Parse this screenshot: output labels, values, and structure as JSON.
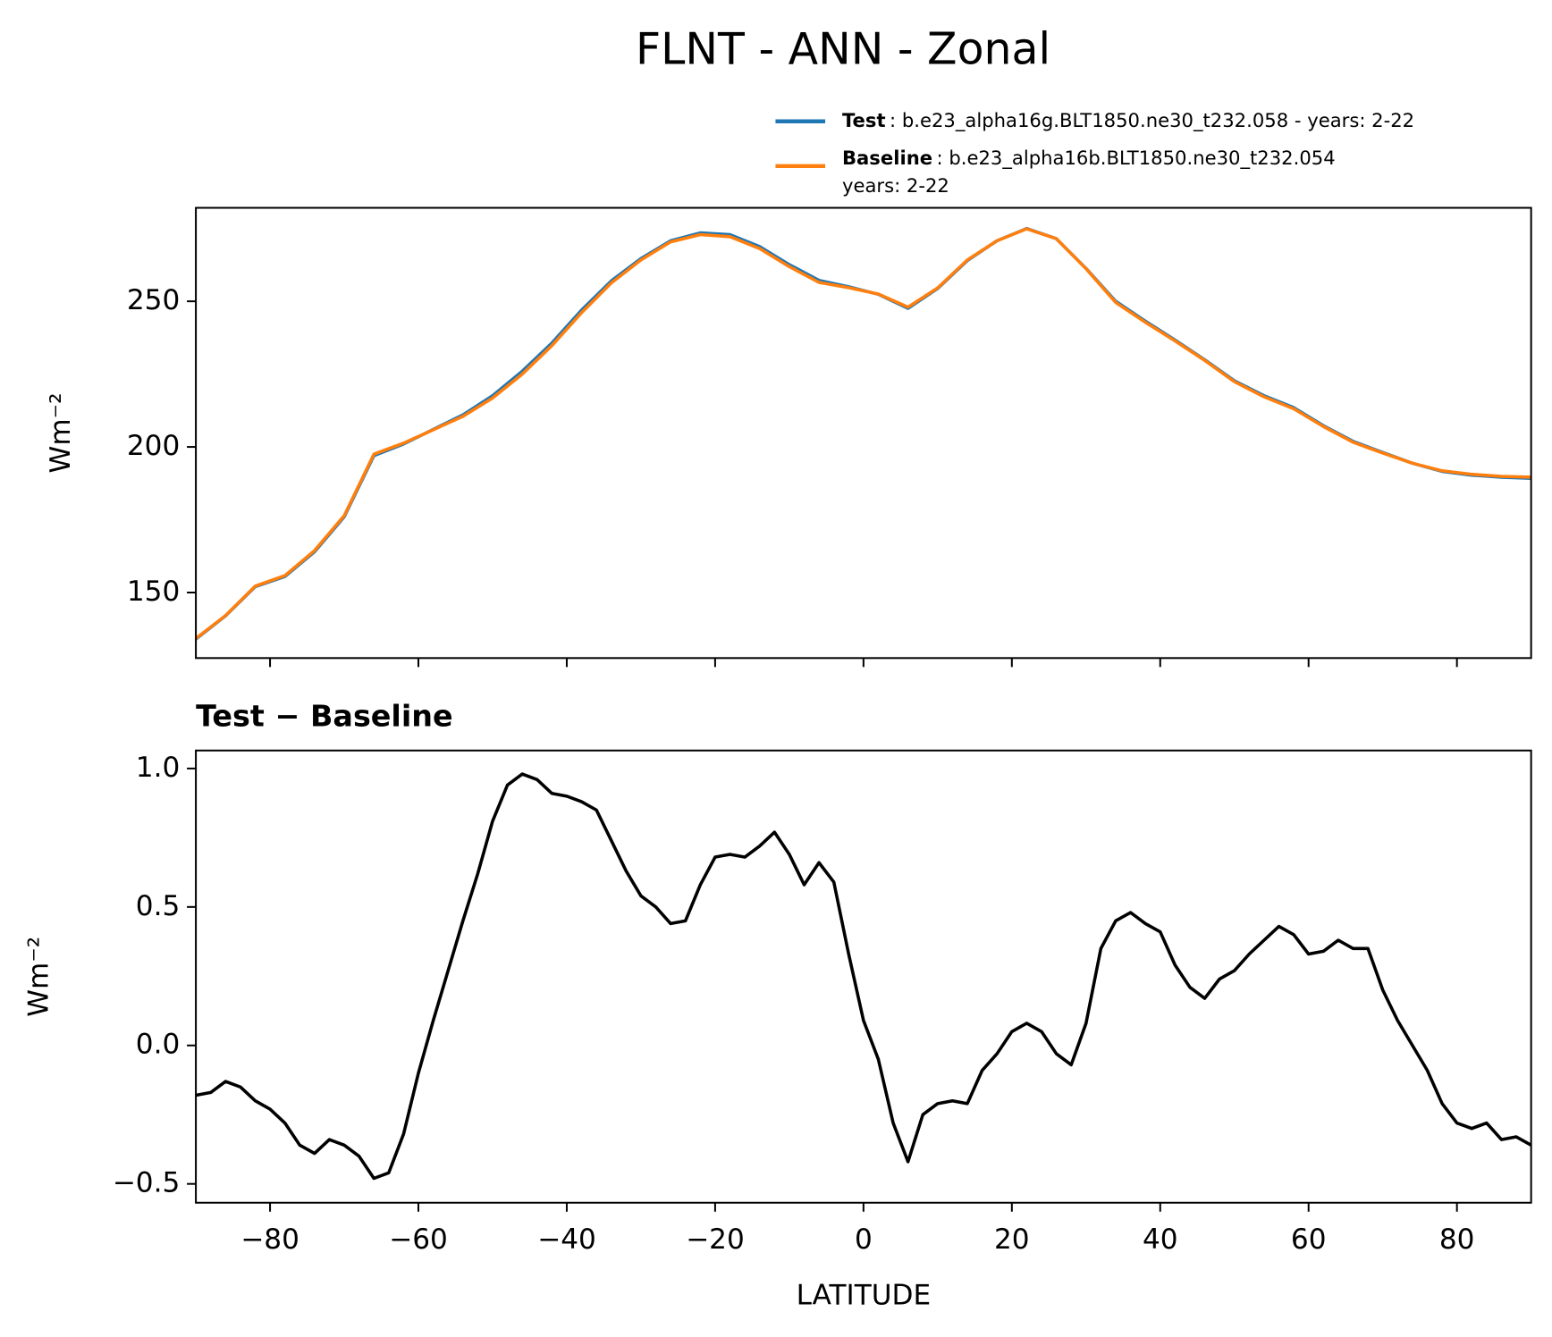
{
  "chart_data": [
    {
      "type": "line",
      "title": "FLNT - ANN - Zonal",
      "ylabel": "Wm⁻²",
      "x": [
        -90,
        -86,
        -82,
        -78,
        -74,
        -70,
        -66,
        -62,
        -58,
        -54,
        -50,
        -46,
        -42,
        -38,
        -34,
        -30,
        -26,
        -22,
        -18,
        -14,
        -10,
        -6,
        -2,
        2,
        6,
        10,
        14,
        18,
        22,
        26,
        30,
        34,
        38,
        42,
        46,
        50,
        54,
        58,
        62,
        66,
        70,
        74,
        78,
        82,
        86,
        90
      ],
      "xlim": [
        -90,
        90
      ],
      "xticks": [
        -80,
        -60,
        -40,
        -20,
        0,
        20,
        40,
        60,
        80
      ],
      "ylim": [
        127.5,
        282.1
      ],
      "yticks": [
        150,
        200,
        250
      ],
      "legend": "upper right",
      "series": [
        {
          "name": "Test",
          "description": [
            ": b.e23_alpha16g.BLT1850.ne30_t232.058 - years: 2-22"
          ],
          "color": "#1f77b4",
          "values": [
            134,
            142,
            152,
            155.5,
            164,
            176,
            197,
            201,
            206,
            211,
            217.6,
            226,
            235.7,
            247,
            257,
            264.7,
            270.8,
            273.5,
            272.9,
            268.8,
            262.6,
            257.2,
            255,
            252.4,
            247.6,
            254.4,
            264,
            270.8,
            275,
            271.5,
            261.3,
            250,
            243.2,
            236.7,
            229.9,
            222.7,
            217.6,
            213.5,
            207.3,
            201.9,
            198.1,
            194.4,
            191.6,
            190.3,
            189.6,
            189.2
          ]
        },
        {
          "name": "Baseline",
          "description": [
            ": b.e23_alpha16b.BLT1850.ne30_t232.054",
            "years: 2-22"
          ],
          "color": "#ff7f0e",
          "values": [
            134.2,
            142.1,
            152.2,
            155.8,
            164.4,
            176.4,
            197.5,
            201.3,
            205.9,
            210.5,
            216.8,
            225,
            234.8,
            246.1,
            256.3,
            264.2,
            270.4,
            272.9,
            272.2,
            268.1,
            261.9,
            256.5,
            254.7,
            252.5,
            248,
            254.6,
            264.2,
            270.8,
            274.9,
            271.5,
            261.2,
            249.6,
            242.8,
            236.4,
            229.7,
            222.4,
            217.2,
            213.1,
            207,
            201.6,
            197.9,
            194.4,
            191.8,
            190.6,
            189.9,
            189.6
          ]
        }
      ]
    },
    {
      "type": "line",
      "title": "Test − Baseline",
      "ylabel": "Wm⁻²",
      "xlabel": "LATITUDE",
      "x": [
        -90,
        -88,
        -86,
        -84,
        -82,
        -80,
        -78,
        -76,
        -74,
        -72,
        -70,
        -68,
        -66,
        -64,
        -62,
        -60,
        -58,
        -56,
        -54,
        -52,
        -50,
        -48,
        -46,
        -44,
        -42,
        -40,
        -38,
        -36,
        -34,
        -32,
        -30,
        -28,
        -26,
        -24,
        -22,
        -20,
        -18,
        -16,
        -14,
        -12,
        -10,
        -8,
        -6,
        -4,
        -2,
        0,
        2,
        4,
        6,
        8,
        10,
        12,
        14,
        16,
        18,
        20,
        22,
        24,
        26,
        28,
        30,
        32,
        34,
        36,
        38,
        40,
        42,
        44,
        46,
        48,
        50,
        52,
        54,
        56,
        58,
        60,
        62,
        64,
        66,
        68,
        70,
        72,
        74,
        76,
        78,
        80,
        82,
        84,
        86,
        88,
        90
      ],
      "xlim": [
        -90,
        90
      ],
      "xticks": [
        {
          "value": -80,
          "label": "−80"
        },
        {
          "value": -60,
          "label": "−60"
        },
        {
          "value": -40,
          "label": "−40"
        },
        {
          "value": -20,
          "label": "−20"
        },
        0,
        20,
        40,
        60,
        80
      ],
      "ylim": [
        -0.568,
        1.065
      ],
      "yticks": [
        {
          "value": -0.5,
          "label": "−0.5"
        },
        {
          "value": 0,
          "label": "0.0"
        },
        0.5,
        {
          "value": 1,
          "label": "1.0"
        }
      ],
      "series": [
        {
          "color": "#000000",
          "values": [
            -0.18,
            -0.17,
            -0.13,
            -0.15,
            -0.2,
            -0.23,
            -0.28,
            -0.36,
            -0.39,
            -0.34,
            -0.36,
            -0.4,
            -0.48,
            -0.46,
            -0.32,
            -0.1,
            0.09,
            0.27,
            0.45,
            0.62,
            0.81,
            0.94,
            0.98,
            0.96,
            0.91,
            0.9,
            0.88,
            0.85,
            0.74,
            0.63,
            0.54,
            0.5,
            0.44,
            0.45,
            0.58,
            0.68,
            0.69,
            0.68,
            0.72,
            0.77,
            0.69,
            0.58,
            0.66,
            0.59,
            0.33,
            0.09,
            -0.05,
            -0.28,
            -0.42,
            -0.25,
            -0.21,
            -0.2,
            -0.21,
            -0.09,
            -0.03,
            0.05,
            0.08,
            0.05,
            -0.03,
            -0.07,
            0.08,
            0.35,
            0.45,
            0.48,
            0.44,
            0.41,
            0.29,
            0.21,
            0.17,
            0.24,
            0.27,
            0.33,
            0.38,
            0.43,
            0.4,
            0.33,
            0.34,
            0.38,
            0.35,
            0.35,
            0.2,
            0.09,
            0,
            -0.09,
            -0.21,
            -0.28,
            -0.3,
            -0.28,
            -0.34,
            -0.33,
            -0.36
          ]
        }
      ]
    }
  ]
}
